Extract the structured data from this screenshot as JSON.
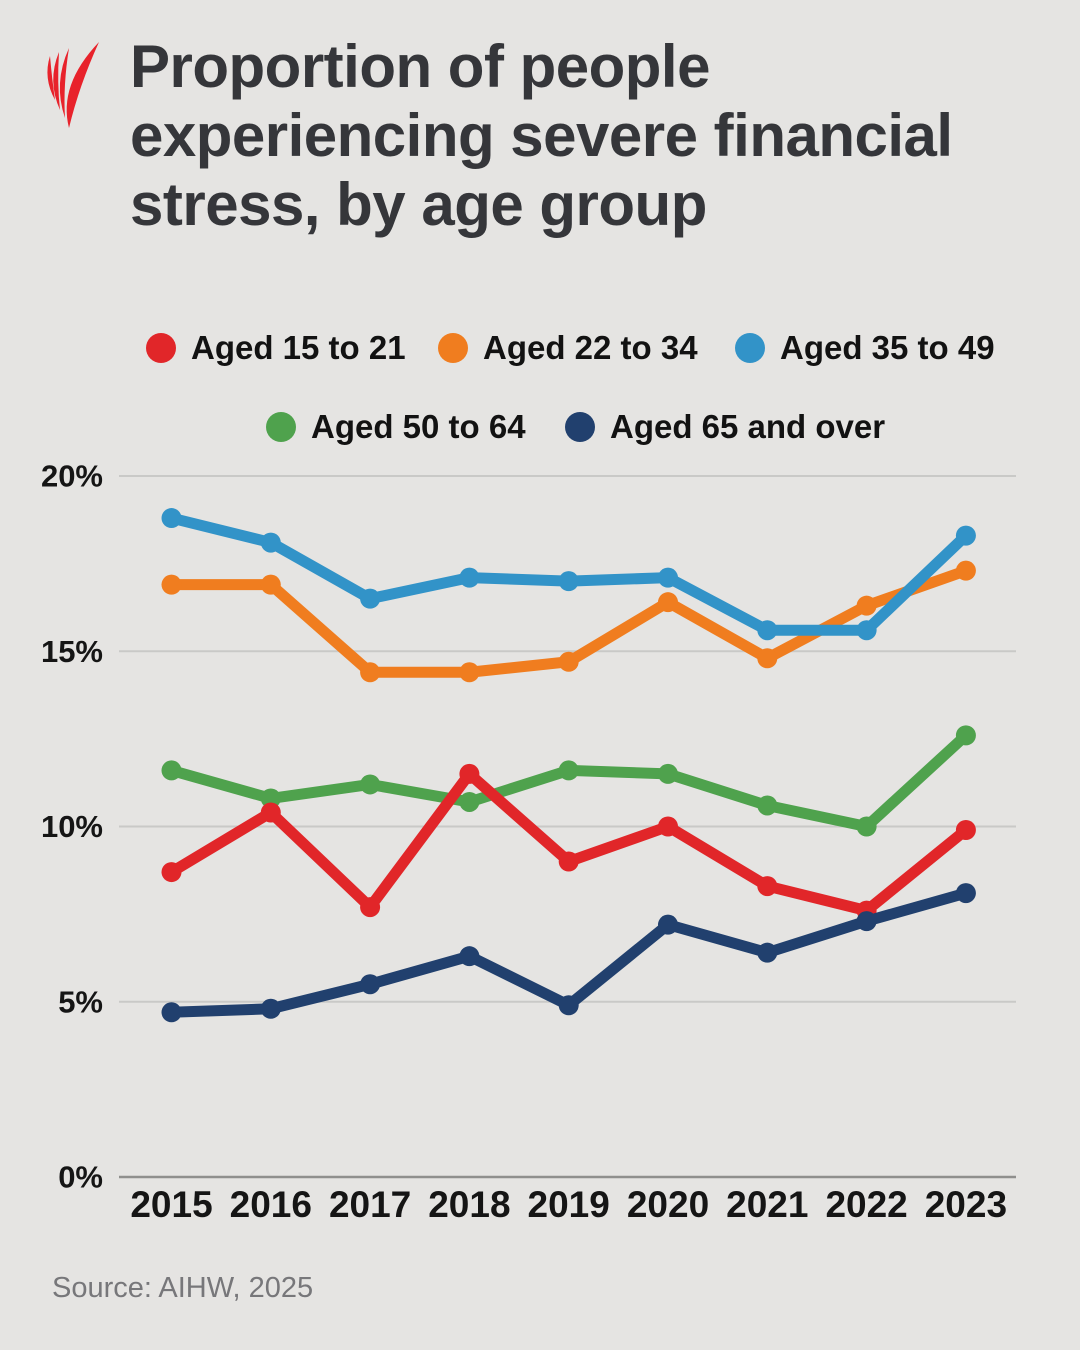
{
  "header": {
    "title_lines": [
      "Proportion of people",
      "experiencing severe financial",
      "stress, by age group"
    ],
    "logo_name": "SBS"
  },
  "footer": {
    "source": "Source: AIHW, 2025"
  },
  "colors": {
    "background": "#e5e4e2",
    "title": "#35363a",
    "tick": "#151515",
    "grid": "#c9c9c7",
    "axis": "#8f8f8d",
    "source": "#77777a",
    "logo_red": "#e8222b"
  },
  "chart_data": {
    "type": "line",
    "title": "Proportion of people experiencing severe financial stress, by age group",
    "x": [
      "2015",
      "2016",
      "2017",
      "2018",
      "2019",
      "2020",
      "2021",
      "2022",
      "2023"
    ],
    "xlabel": "",
    "ylabel": "",
    "ylim": [
      0,
      20
    ],
    "grid": true,
    "legend_position": "top",
    "y_ticks": [
      {
        "v": 20,
        "label": "20%"
      },
      {
        "v": 15,
        "label": "15%"
      },
      {
        "v": 10,
        "label": "10%"
      },
      {
        "v": 5,
        "label": "5%"
      },
      {
        "v": 0,
        "label": "0%"
      }
    ],
    "series": [
      {
        "name": "Aged 15 to 21",
        "color": "#e12629",
        "values": [
          8.7,
          10.4,
          7.7,
          11.5,
          9.0,
          10.0,
          8.3,
          7.6,
          9.9
        ]
      },
      {
        "name": "Aged 22 to 34",
        "color": "#f07d1f",
        "values": [
          16.9,
          16.9,
          14.4,
          14.4,
          14.7,
          16.4,
          14.8,
          16.3,
          17.3
        ]
      },
      {
        "name": "Aged 35 to 49",
        "color": "#3293c8",
        "values": [
          18.8,
          18.1,
          16.5,
          17.1,
          17.0,
          17.1,
          15.6,
          15.6,
          18.3
        ]
      },
      {
        "name": "Aged 50 to 64",
        "color": "#4fa24d",
        "values": [
          11.6,
          10.8,
          11.2,
          10.7,
          11.6,
          11.5,
          10.6,
          10.0,
          12.6
        ]
      },
      {
        "name": "Aged 65 and over",
        "color": "#21406e",
        "values": [
          4.7,
          4.8,
          5.5,
          6.3,
          4.9,
          7.2,
          6.4,
          7.3,
          8.1
        ]
      }
    ],
    "draw_order": [
      3,
      0,
      4,
      1,
      2
    ],
    "source": "AIHW, 2025"
  }
}
